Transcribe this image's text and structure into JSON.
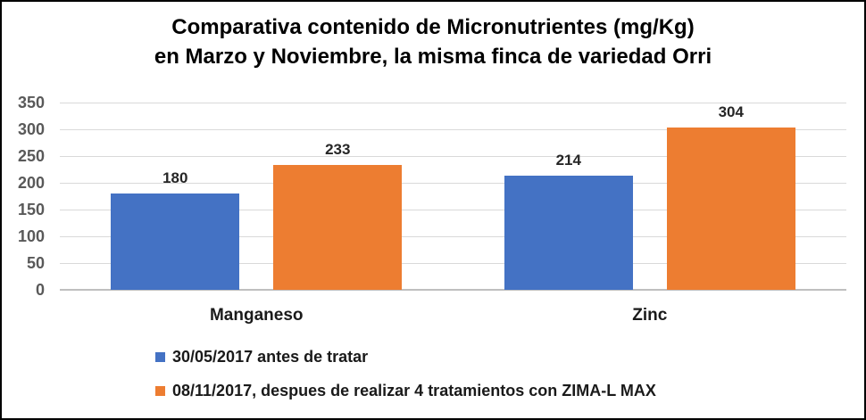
{
  "header": {
    "title_line1": "Comparativa contenido de Micronutrientes (mg/Kg)",
    "title_line2": "en Marzo y Noviembre, la misma finca de variedad Orri"
  },
  "chart_data": {
    "type": "bar",
    "title": "Comparativa contenido de Micronutrientes (mg/Kg) en Marzo y Noviembre, la misma finca de variedad Orri",
    "categories": [
      "Manganeso",
      "Zinc"
    ],
    "series": [
      {
        "name": "30/05/2017 antes de tratar",
        "color": "#4472C4",
        "values": [
          180,
          214
        ]
      },
      {
        "name": "08/11/2017, despues de realizar 4 tratamientos con ZIMA-L MAX",
        "color": "#ED7D31",
        "values": [
          233,
          304
        ]
      }
    ],
    "xlabel": "",
    "ylabel": "",
    "ylim": [
      0,
      350
    ],
    "yticks": [
      0,
      50,
      100,
      150,
      200,
      250,
      300,
      350
    ],
    "grid": true,
    "data_labels": true,
    "legend_position": "bottom-left"
  },
  "colors": {
    "series_blue": "#4472C4",
    "series_orange": "#ED7D31",
    "gridline": "#D9D9D9",
    "axis_line": "#BFBFBF",
    "tick_label": "#595959",
    "text": "#1a1a1a",
    "background": "#ffffff",
    "border": "#000000"
  }
}
